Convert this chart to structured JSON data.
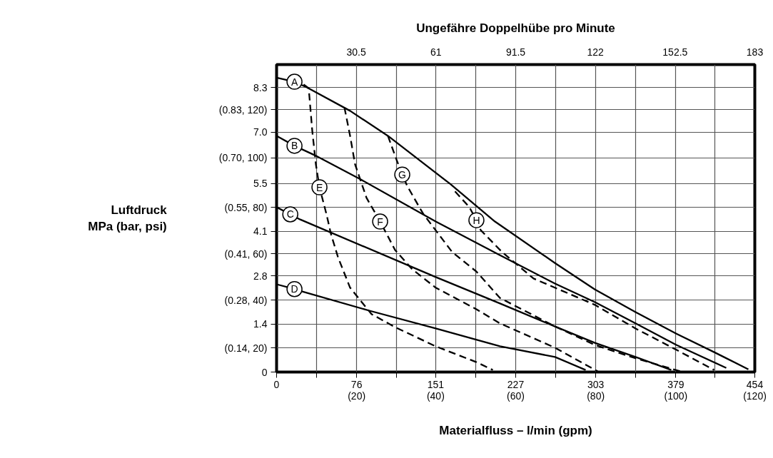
{
  "chart_data": {
    "type": "line",
    "xlabel": "Materialfluss – l/min (gpm)",
    "x2label": "Ungefähre Doppelhübe pro Minute",
    "ylabel": "Luftdruck\nMPa (bar, psi)",
    "xlim": [
      0,
      454
    ],
    "x2lim": [
      0,
      183
    ],
    "ylim": [
      0,
      8.97
    ],
    "grid": true,
    "xticks": [
      0,
      {
        "value": 37.83,
        "label": null
      },
      76,
      {
        "value": 113.5,
        "label": null
      },
      151,
      {
        "value": 189.17,
        "label": null
      },
      227,
      {
        "value": 264.83,
        "label": null
      },
      303,
      {
        "value": 340.5,
        "label": null
      },
      379,
      {
        "value": 416.17,
        "label": null
      },
      454
    ],
    "annotations": [
      "(20)",
      "(40)",
      "(60)",
      "(80)",
      "(100)",
      "(120)"
    ],
    "x2ticks": [
      30.5,
      61,
      91.5,
      122,
      152.5,
      183
    ],
    "yticks": [
      0,
      {
        "value": 0.7,
        "label": "(0.14, 20)"
      },
      1.4,
      {
        "value": 2.1,
        "label": "(0.28, 40)"
      },
      2.8,
      {
        "value": 3.45,
        "label": "(0.41, 60)"
      },
      4.1,
      {
        "value": 4.8,
        "label": "(0.55, 80)"
      },
      5.5,
      {
        "value": 6.25,
        "label": "(0.70, 100)"
      },
      {
        "value": 7.0,
        "label": "7.0"
      },
      {
        "value": 7.65,
        "label": "(0.83, 120)"
      },
      8.3
    ],
    "series": [
      {
        "name": "A",
        "color": "#000000",
        "line_style": "solid",
        "x": [
          0,
          17,
          29.1,
          69.8,
          105.7,
          164.7,
          207.3,
          264.3,
          302.2,
          340.8,
          379.5,
          415.4,
          447.9
        ],
        "values": [
          8.59,
          8.47,
          8.3,
          7.62,
          6.89,
          5.49,
          4.39,
          3.18,
          2.41,
          1.75,
          1.12,
          0.58,
          0.08
        ]
      },
      {
        "name": "B",
        "color": "#000000",
        "line_style": "solid",
        "x": [
          0,
          17,
          35.9,
          78.6,
          151.1,
          212.1,
          264.3,
          302.2,
          340.8,
          379.5,
          426.9
        ],
        "values": [
          6.89,
          6.6,
          6.33,
          5.64,
          4.39,
          3.41,
          2.58,
          2.04,
          1.42,
          0.79,
          0.12
        ]
      },
      {
        "name": "C",
        "color": "#000000",
        "line_style": "solid",
        "x": [
          0,
          13,
          22.4,
          151.1,
          212.1,
          264.3,
          302.2,
          340.8,
          374.7
        ],
        "values": [
          4.81,
          4.6,
          4.45,
          2.77,
          2.0,
          1.33,
          0.85,
          0.44,
          0.06
        ]
      },
      {
        "name": "D",
        "color": "#000000",
        "line_style": "solid",
        "x": [
          0,
          17,
          24.4,
          88.1,
          151.1,
          212.1,
          264.3,
          293.4
        ],
        "values": [
          2.56,
          2.42,
          2.35,
          1.79,
          1.27,
          0.75,
          0.44,
          0.06
        ]
      },
      {
        "name": "E",
        "color": "#000000",
        "line_style": "dashed",
        "x": [
          25.7,
          30.5,
          33.9,
          37.3,
          40.7,
          47.4,
          51.5,
          58.3,
          69.8,
          90.1,
          112.5,
          151.1,
          189.7,
          205.3
        ],
        "values": [
          8.39,
          8.28,
          7.03,
          6.06,
          5.39,
          4.6,
          4.04,
          3.35,
          2.46,
          1.69,
          1.31,
          0.75,
          0.29,
          0.06
        ]
      },
      {
        "name": "F",
        "color": "#000000",
        "line_style": "dashed",
        "x": [
          64.4,
          69.8,
          74.5,
          85.4,
          98.3,
          112.5,
          128.7,
          151.1,
          189.7,
          212.1,
          264.3,
          304.9
        ],
        "values": [
          7.72,
          6.89,
          6.06,
          5.08,
          4.39,
          3.56,
          3.0,
          2.46,
          1.83,
          1.42,
          0.71,
          0.02
        ]
      },
      {
        "name": "G",
        "color": "#000000",
        "line_style": "dashed",
        "x": [
          105.7,
          113.8,
          119.3,
          124.0,
          135.5,
          139.6,
          166.7,
          189.7,
          212.1,
          264.3,
          302.2,
          340.8,
          383.5
        ],
        "values": [
          6.89,
          6.2,
          5.76,
          5.43,
          4.81,
          4.6,
          3.5,
          2.93,
          2.16,
          1.33,
          0.79,
          0.4,
          0.02
        ]
      },
      {
        "name": "H",
        "color": "#000000",
        "line_style": "dashed",
        "x": [
          169.4,
          183.0,
          189.7,
          193.8,
          214.1,
          243.9,
          302.2,
          340.8,
          379.5,
          415.4
        ],
        "values": [
          5.27,
          4.81,
          4.43,
          4.14,
          3.5,
          2.73,
          1.96,
          1.27,
          0.65,
          0.06
        ]
      }
    ]
  }
}
